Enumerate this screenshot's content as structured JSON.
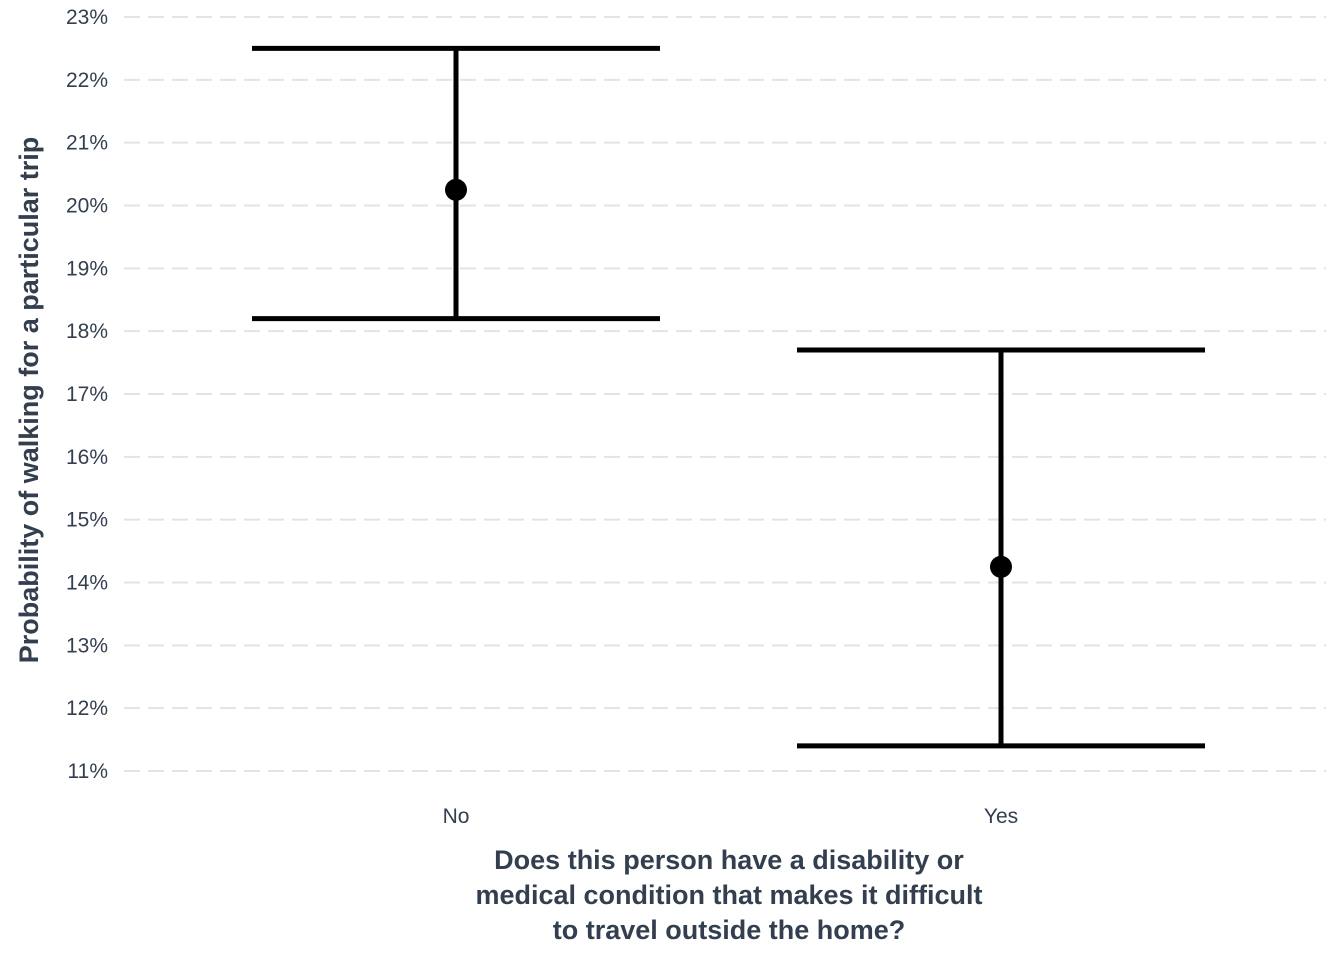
{
  "chart_data": {
    "type": "errorbar",
    "title": "",
    "xlabel_lines": [
      "Does this person have a disability or",
      "medical condition that makes it difficult",
      "to travel outside the home?"
    ],
    "ylabel": "Probability of walking for a particular trip",
    "categories": [
      "No",
      "Yes"
    ],
    "estimates": [
      20.25,
      14.25
    ],
    "lower": [
      18.2,
      11.4
    ],
    "upper": [
      22.5,
      17.7
    ],
    "ylim": [
      11,
      23
    ],
    "yticks": [
      11,
      12,
      13,
      14,
      15,
      16,
      17,
      18,
      19,
      20,
      21,
      22,
      23
    ],
    "ytick_labels": [
      "11%",
      "12%",
      "13%",
      "14%",
      "15%",
      "16%",
      "17%",
      "18%",
      "19%",
      "20%",
      "21%",
      "22%",
      "23%"
    ],
    "grid": true,
    "colors": {
      "mark": "#000000",
      "grid": "#e3e3e3",
      "text": "#333f4f"
    }
  }
}
